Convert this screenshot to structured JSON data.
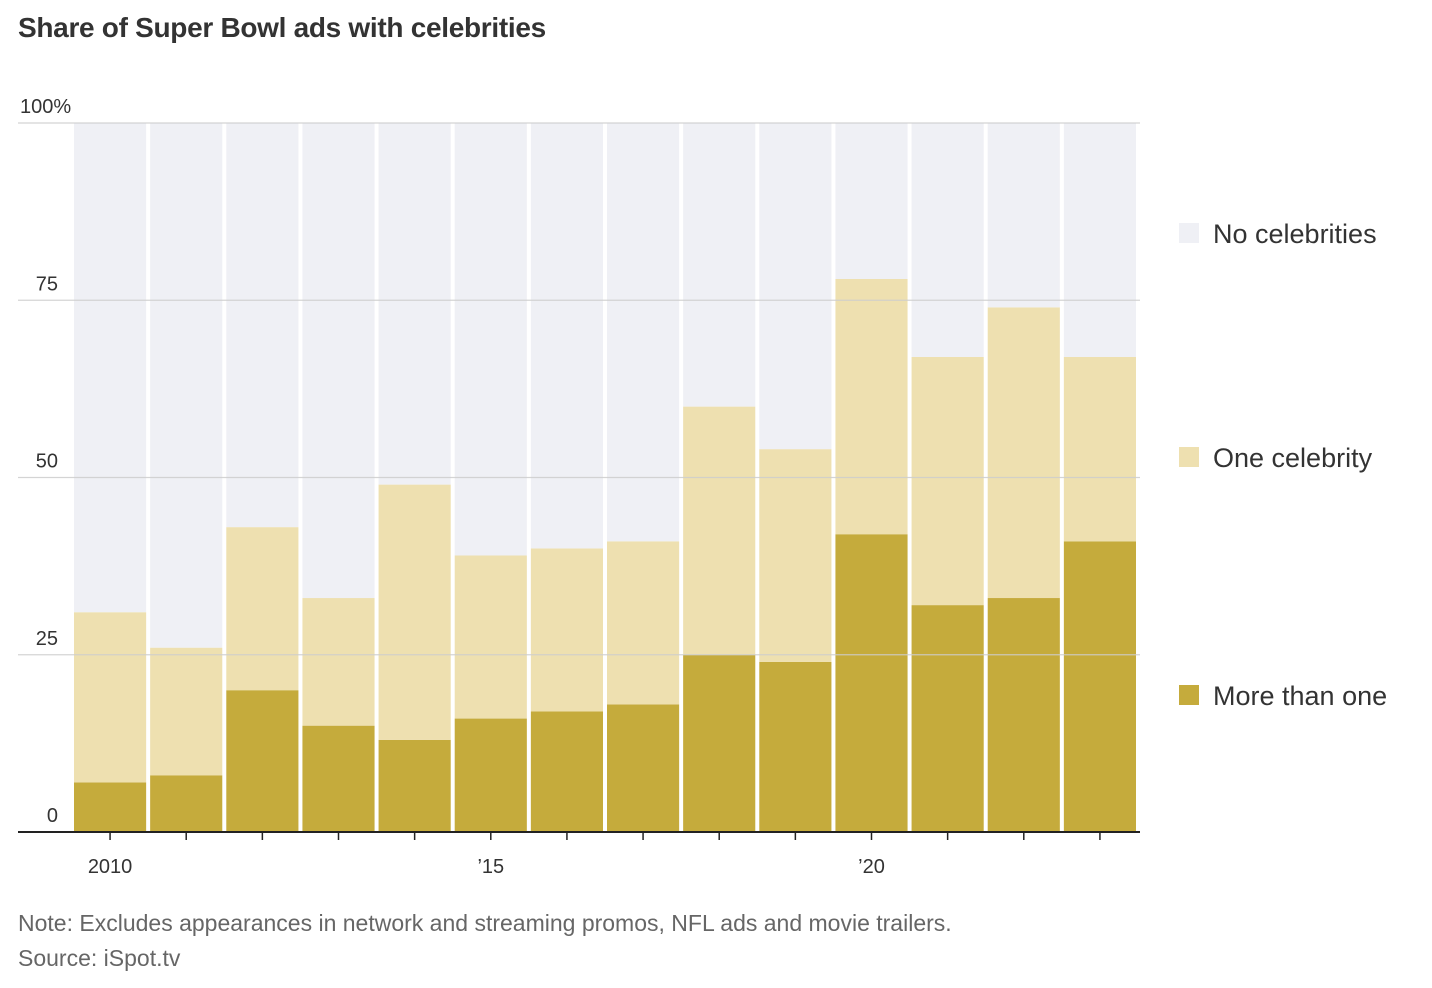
{
  "title": "Share of Super Bowl ads with celebrities",
  "note": "Note: Excludes appearances in network and streaming promos, NFL ads and movie trailers.",
  "source": "Source: iSpot.tv",
  "colors": {
    "none": "#EFF0F5",
    "one": "#EEE0B0",
    "more": "#C5AB3C",
    "grid": "#cccccc",
    "axis": "#222222"
  },
  "chart_data": {
    "type": "bar",
    "stacked": true,
    "title": "Share of Super Bowl ads with celebrities",
    "x": [
      2010,
      2011,
      2012,
      2013,
      2014,
      2015,
      2016,
      2017,
      2018,
      2019,
      2020,
      2021,
      2022,
      2023
    ],
    "x_tick_labels": [
      {
        "year": 2010,
        "label": "2010"
      },
      {
        "year": 2015,
        "label": "’15"
      },
      {
        "year": 2020,
        "label": "’20"
      }
    ],
    "y_tick_labels": [
      {
        "value": 0,
        "label": "0"
      },
      {
        "value": 25,
        "label": "25"
      },
      {
        "value": 50,
        "label": "50"
      },
      {
        "value": 75,
        "label": "75"
      },
      {
        "value": 100,
        "label": "100%"
      }
    ],
    "ylim": [
      0,
      100
    ],
    "series": [
      {
        "name": "More than one",
        "key": "more",
        "values": [
          7,
          8,
          20,
          15,
          13,
          16,
          17,
          18,
          25,
          24,
          42,
          32,
          33,
          41
        ]
      },
      {
        "name": "One celebrity",
        "key": "one",
        "values": [
          24,
          18,
          23,
          18,
          36,
          23,
          23,
          23,
          35,
          30,
          36,
          35,
          41,
          26
        ]
      },
      {
        "name": "No celebrities",
        "key": "none",
        "values": [
          69,
          74,
          57,
          67,
          51,
          61,
          60,
          59,
          40,
          46,
          22,
          33,
          26,
          33
        ]
      }
    ],
    "legend": [
      {
        "key": "none",
        "label": "No celebrities"
      },
      {
        "key": "one",
        "label": "One celebrity"
      },
      {
        "key": "more",
        "label": "More than one"
      }
    ],
    "legend_position": "right",
    "grid": true
  }
}
